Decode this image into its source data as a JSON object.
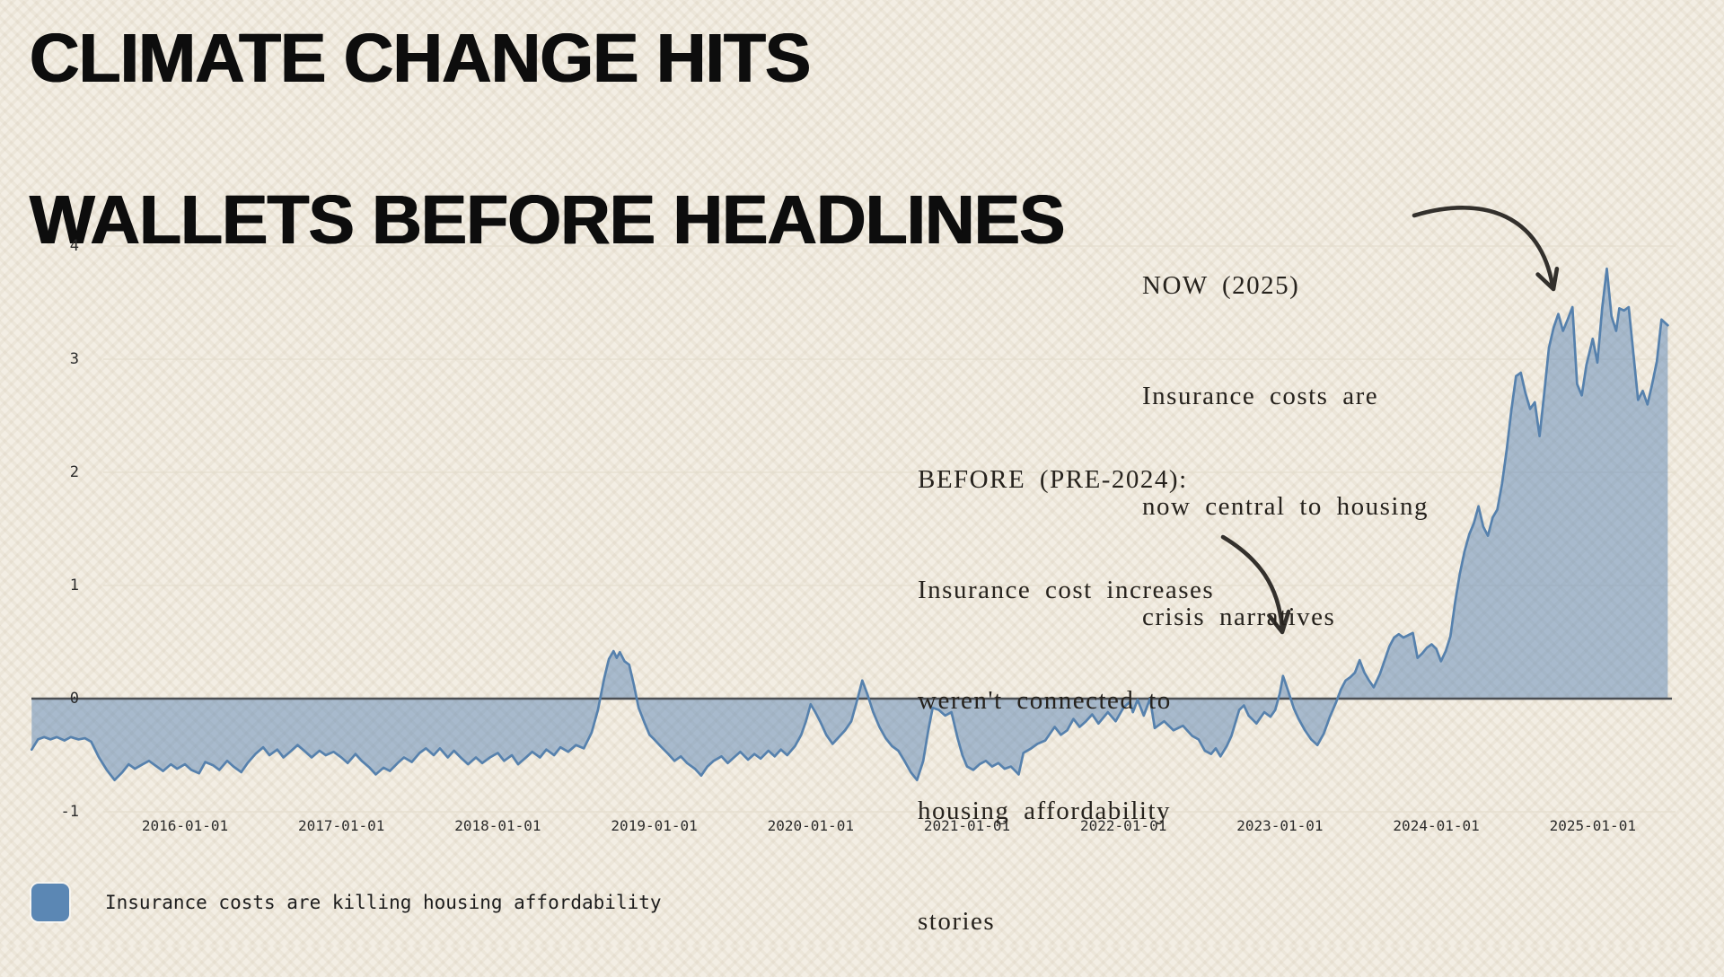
{
  "page": {
    "title_line1": "CLIMATE CHANGE HITS",
    "title_line2": "WALLETS BEFORE HEADLINES"
  },
  "annotations": {
    "now": {
      "line1": "NOW (2025)",
      "line2": "Insurance costs are",
      "line3": "now central to housing",
      "line4": "crisis narratives"
    },
    "before": {
      "line1": "BEFORE (PRE-2024):",
      "line2": "Insurance cost increases",
      "line3": "weren't connected to",
      "line4": "housing affordability",
      "line5": "stories"
    }
  },
  "legend": {
    "label": "Insurance costs are killing housing affordability",
    "swatch_color": "#5b87b4"
  },
  "colors": {
    "background": "#f3eee4",
    "pattern": "#e9e2d4",
    "title": "#0d0d0d",
    "line": "#5681ad",
    "fill": "#5681b3",
    "zero_line": "#4b4f54",
    "gridline": "#e4ddcd",
    "annotation_ink": "#33302c"
  },
  "chart_data": {
    "type": "area",
    "title": "",
    "xlabel": "",
    "ylabel": "",
    "grid": "horizontal",
    "legend_position": "bottom-left",
    "baseline": 0,
    "ylim": [
      -1,
      4.3
    ],
    "xlim_years": [
      2015.0,
      2025.55
    ],
    "y_ticks": [
      -1,
      0,
      1,
      2,
      3,
      4
    ],
    "x_ticks": [
      "2016-01-01",
      "2017-01-01",
      "2018-01-01",
      "2019-01-01",
      "2020-01-01",
      "2021-01-01",
      "2022-01-01",
      "2023-01-01",
      "2024-01-01",
      "2025-01-01"
    ],
    "series": [
      {
        "name": "Insurance costs are killing housing affordability",
        "points": [
          [
            2015.02,
            -0.45
          ],
          [
            2015.06,
            -0.36
          ],
          [
            2015.1,
            -0.34
          ],
          [
            2015.14,
            -0.36
          ],
          [
            2015.18,
            -0.34
          ],
          [
            2015.23,
            -0.37
          ],
          [
            2015.27,
            -0.34
          ],
          [
            2015.32,
            -0.36
          ],
          [
            2015.36,
            -0.35
          ],
          [
            2015.4,
            -0.38
          ],
          [
            2015.45,
            -0.52
          ],
          [
            2015.5,
            -0.63
          ],
          [
            2015.55,
            -0.72
          ],
          [
            2015.6,
            -0.65
          ],
          [
            2015.64,
            -0.58
          ],
          [
            2015.68,
            -0.62
          ],
          [
            2015.73,
            -0.58
          ],
          [
            2015.77,
            -0.55
          ],
          [
            2015.82,
            -0.6
          ],
          [
            2015.86,
            -0.64
          ],
          [
            2015.91,
            -0.58
          ],
          [
            2015.95,
            -0.62
          ],
          [
            2016.0,
            -0.58
          ],
          [
            2016.04,
            -0.63
          ],
          [
            2016.09,
            -0.66
          ],
          [
            2016.13,
            -0.56
          ],
          [
            2016.18,
            -0.59
          ],
          [
            2016.22,
            -0.63
          ],
          [
            2016.27,
            -0.55
          ],
          [
            2016.31,
            -0.6
          ],
          [
            2016.36,
            -0.65
          ],
          [
            2016.4,
            -0.57
          ],
          [
            2016.45,
            -0.49
          ],
          [
            2016.5,
            -0.43
          ],
          [
            2016.54,
            -0.5
          ],
          [
            2016.59,
            -0.45
          ],
          [
            2016.63,
            -0.52
          ],
          [
            2016.68,
            -0.46
          ],
          [
            2016.72,
            -0.41
          ],
          [
            2016.77,
            -0.47
          ],
          [
            2016.81,
            -0.52
          ],
          [
            2016.86,
            -0.46
          ],
          [
            2016.9,
            -0.5
          ],
          [
            2016.95,
            -0.47
          ],
          [
            2017.0,
            -0.52
          ],
          [
            2017.04,
            -0.57
          ],
          [
            2017.09,
            -0.49
          ],
          [
            2017.13,
            -0.55
          ],
          [
            2017.18,
            -0.61
          ],
          [
            2017.22,
            -0.67
          ],
          [
            2017.27,
            -0.61
          ],
          [
            2017.31,
            -0.64
          ],
          [
            2017.36,
            -0.57
          ],
          [
            2017.4,
            -0.52
          ],
          [
            2017.45,
            -0.56
          ],
          [
            2017.5,
            -0.48
          ],
          [
            2017.54,
            -0.44
          ],
          [
            2017.59,
            -0.5
          ],
          [
            2017.63,
            -0.44
          ],
          [
            2017.68,
            -0.52
          ],
          [
            2017.72,
            -0.46
          ],
          [
            2017.77,
            -0.53
          ],
          [
            2017.81,
            -0.58
          ],
          [
            2017.86,
            -0.52
          ],
          [
            2017.9,
            -0.57
          ],
          [
            2017.95,
            -0.52
          ],
          [
            2018.0,
            -0.48
          ],
          [
            2018.04,
            -0.55
          ],
          [
            2018.09,
            -0.5
          ],
          [
            2018.13,
            -0.58
          ],
          [
            2018.18,
            -0.52
          ],
          [
            2018.22,
            -0.47
          ],
          [
            2018.27,
            -0.52
          ],
          [
            2018.31,
            -0.45
          ],
          [
            2018.36,
            -0.5
          ],
          [
            2018.4,
            -0.43
          ],
          [
            2018.45,
            -0.47
          ],
          [
            2018.5,
            -0.41
          ],
          [
            2018.55,
            -0.44
          ],
          [
            2018.6,
            -0.3
          ],
          [
            2018.64,
            -0.1
          ],
          [
            2018.68,
            0.18
          ],
          [
            2018.71,
            0.35
          ],
          [
            2018.74,
            0.42
          ],
          [
            2018.76,
            0.36
          ],
          [
            2018.78,
            0.41
          ],
          [
            2018.81,
            0.33
          ],
          [
            2018.84,
            0.3
          ],
          [
            2018.87,
            0.12
          ],
          [
            2018.9,
            -0.08
          ],
          [
            2018.94,
            -0.22
          ],
          [
            2018.97,
            -0.32
          ],
          [
            2019.0,
            -0.36
          ],
          [
            2019.04,
            -0.42
          ],
          [
            2019.09,
            -0.49
          ],
          [
            2019.13,
            -0.55
          ],
          [
            2019.17,
            -0.51
          ],
          [
            2019.21,
            -0.57
          ],
          [
            2019.26,
            -0.62
          ],
          [
            2019.3,
            -0.68
          ],
          [
            2019.34,
            -0.6
          ],
          [
            2019.38,
            -0.55
          ],
          [
            2019.43,
            -0.51
          ],
          [
            2019.47,
            -0.57
          ],
          [
            2019.51,
            -0.52
          ],
          [
            2019.55,
            -0.47
          ],
          [
            2019.6,
            -0.54
          ],
          [
            2019.64,
            -0.49
          ],
          [
            2019.68,
            -0.53
          ],
          [
            2019.73,
            -0.46
          ],
          [
            2019.77,
            -0.51
          ],
          [
            2019.81,
            -0.45
          ],
          [
            2019.85,
            -0.5
          ],
          [
            2019.9,
            -0.42
          ],
          [
            2019.94,
            -0.32
          ],
          [
            2019.97,
            -0.2
          ],
          [
            2020.0,
            -0.05
          ],
          [
            2020.03,
            -0.12
          ],
          [
            2020.06,
            -0.2
          ],
          [
            2020.1,
            -0.32
          ],
          [
            2020.14,
            -0.4
          ],
          [
            2020.18,
            -0.34
          ],
          [
            2020.22,
            -0.28
          ],
          [
            2020.26,
            -0.2
          ],
          [
            2020.3,
            0.0
          ],
          [
            2020.33,
            0.16
          ],
          [
            2020.36,
            0.05
          ],
          [
            2020.4,
            -0.12
          ],
          [
            2020.44,
            -0.25
          ],
          [
            2020.48,
            -0.35
          ],
          [
            2020.52,
            -0.42
          ],
          [
            2020.56,
            -0.46
          ],
          [
            2020.6,
            -0.55
          ],
          [
            2020.64,
            -0.65
          ],
          [
            2020.68,
            -0.72
          ],
          [
            2020.72,
            -0.55
          ],
          [
            2020.75,
            -0.3
          ],
          [
            2020.78,
            -0.08
          ],
          [
            2020.82,
            -0.1
          ],
          [
            2020.86,
            -0.15
          ],
          [
            2020.9,
            -0.12
          ],
          [
            2020.94,
            -0.35
          ],
          [
            2020.97,
            -0.5
          ],
          [
            2021.0,
            -0.6
          ],
          [
            2021.04,
            -0.63
          ],
          [
            2021.08,
            -0.58
          ],
          [
            2021.12,
            -0.55
          ],
          [
            2021.16,
            -0.6
          ],
          [
            2021.2,
            -0.57
          ],
          [
            2021.24,
            -0.62
          ],
          [
            2021.28,
            -0.6
          ],
          [
            2021.33,
            -0.67
          ],
          [
            2021.36,
            -0.48
          ],
          [
            2021.41,
            -0.44
          ],
          [
            2021.45,
            -0.4
          ],
          [
            2021.5,
            -0.37
          ],
          [
            2021.56,
            -0.25
          ],
          [
            2021.6,
            -0.32
          ],
          [
            2021.64,
            -0.28
          ],
          [
            2021.68,
            -0.18
          ],
          [
            2021.72,
            -0.25
          ],
          [
            2021.76,
            -0.2
          ],
          [
            2021.8,
            -0.14
          ],
          [
            2021.84,
            -0.22
          ],
          [
            2021.9,
            -0.12
          ],
          [
            2021.95,
            -0.2
          ],
          [
            2022.0,
            -0.08
          ],
          [
            2022.04,
            -0.03
          ],
          [
            2022.06,
            -0.12
          ],
          [
            2022.09,
            -0.01
          ],
          [
            2022.13,
            -0.15
          ],
          [
            2022.17,
            0.0
          ],
          [
            2022.2,
            -0.26
          ],
          [
            2022.26,
            -0.2
          ],
          [
            2022.32,
            -0.28
          ],
          [
            2022.38,
            -0.24
          ],
          [
            2022.44,
            -0.33
          ],
          [
            2022.48,
            -0.36
          ],
          [
            2022.52,
            -0.46
          ],
          [
            2022.56,
            -0.49
          ],
          [
            2022.59,
            -0.44
          ],
          [
            2022.62,
            -0.51
          ],
          [
            2022.66,
            -0.42
          ],
          [
            2022.69,
            -0.33
          ],
          [
            2022.74,
            -0.1
          ],
          [
            2022.77,
            -0.06
          ],
          [
            2022.8,
            -0.15
          ],
          [
            2022.85,
            -0.22
          ],
          [
            2022.9,
            -0.12
          ],
          [
            2022.94,
            -0.16
          ],
          [
            2022.97,
            -0.1
          ],
          [
            2023.0,
            0.05
          ],
          [
            2023.02,
            0.2
          ],
          [
            2023.05,
            0.08
          ],
          [
            2023.09,
            -0.09
          ],
          [
            2023.12,
            -0.18
          ],
          [
            2023.16,
            -0.28
          ],
          [
            2023.2,
            -0.36
          ],
          [
            2023.24,
            -0.41
          ],
          [
            2023.28,
            -0.31
          ],
          [
            2023.32,
            -0.16
          ],
          [
            2023.36,
            -0.03
          ],
          [
            2023.39,
            0.08
          ],
          [
            2023.42,
            0.16
          ],
          [
            2023.45,
            0.19
          ],
          [
            2023.48,
            0.23
          ],
          [
            2023.51,
            0.34
          ],
          [
            2023.54,
            0.23
          ],
          [
            2023.57,
            0.16
          ],
          [
            2023.6,
            0.1
          ],
          [
            2023.64,
            0.22
          ],
          [
            2023.67,
            0.34
          ],
          [
            2023.7,
            0.46
          ],
          [
            2023.73,
            0.54
          ],
          [
            2023.76,
            0.57
          ],
          [
            2023.79,
            0.54
          ],
          [
            2023.82,
            0.56
          ],
          [
            2023.85,
            0.58
          ],
          [
            2023.88,
            0.36
          ],
          [
            2023.91,
            0.4
          ],
          [
            2023.94,
            0.45
          ],
          [
            2023.97,
            0.48
          ],
          [
            2024.0,
            0.44
          ],
          [
            2024.03,
            0.33
          ],
          [
            2024.06,
            0.42
          ],
          [
            2024.09,
            0.55
          ],
          [
            2024.12,
            0.85
          ],
          [
            2024.15,
            1.1
          ],
          [
            2024.18,
            1.3
          ],
          [
            2024.21,
            1.45
          ],
          [
            2024.24,
            1.55
          ],
          [
            2024.27,
            1.7
          ],
          [
            2024.3,
            1.52
          ],
          [
            2024.33,
            1.44
          ],
          [
            2024.36,
            1.6
          ],
          [
            2024.39,
            1.67
          ],
          [
            2024.42,
            1.9
          ],
          [
            2024.45,
            2.2
          ],
          [
            2024.48,
            2.55
          ],
          [
            2024.51,
            2.85
          ],
          [
            2024.54,
            2.88
          ],
          [
            2024.57,
            2.7
          ],
          [
            2024.6,
            2.56
          ],
          [
            2024.63,
            2.62
          ],
          [
            2024.66,
            2.32
          ],
          [
            2024.69,
            2.7
          ],
          [
            2024.72,
            3.1
          ],
          [
            2024.75,
            3.28
          ],
          [
            2024.78,
            3.4
          ],
          [
            2024.81,
            3.25
          ],
          [
            2024.84,
            3.35
          ],
          [
            2024.87,
            3.46
          ],
          [
            2024.9,
            2.78
          ],
          [
            2024.93,
            2.68
          ],
          [
            2024.96,
            2.95
          ],
          [
            2025.0,
            3.18
          ],
          [
            2025.03,
            2.97
          ],
          [
            2025.06,
            3.45
          ],
          [
            2025.09,
            3.8
          ],
          [
            2025.12,
            3.38
          ],
          [
            2025.15,
            3.25
          ],
          [
            2025.17,
            3.45
          ],
          [
            2025.2,
            3.43
          ],
          [
            2025.23,
            3.46
          ],
          [
            2025.26,
            3.05
          ],
          [
            2025.29,
            2.64
          ],
          [
            2025.32,
            2.72
          ],
          [
            2025.35,
            2.6
          ],
          [
            2025.38,
            2.78
          ],
          [
            2025.41,
            2.98
          ],
          [
            2025.44,
            3.35
          ],
          [
            2025.48,
            3.3
          ]
        ]
      }
    ]
  }
}
